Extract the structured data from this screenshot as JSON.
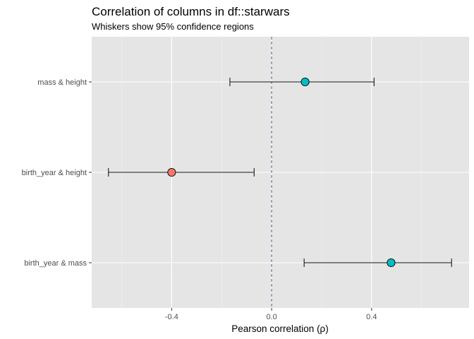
{
  "chart_data": {
    "type": "scatter",
    "title": "Correlation of columns in df::starwars",
    "subtitle": "Whiskers show 95% confidence regions",
    "xlabel": "Pearson correlation (ρ)",
    "ylabel": "",
    "xlim": [
      -0.72,
      0.79
    ],
    "x_ticks": [
      -0.4,
      0.0,
      0.4
    ],
    "x_tick_labels": [
      "-0.4",
      "0.0",
      "0.4"
    ],
    "reference_line": {
      "x": 0,
      "style": "dashed",
      "color": "#6b7b93"
    },
    "grid": true,
    "background_color": "#e5e5e5",
    "categories": [
      "mass & height",
      "birth_year & height",
      "birth_year & mass"
    ],
    "points": [
      {
        "label": "mass & height",
        "estimate": 0.134,
        "ci_low": -0.167,
        "ci_high": 0.41,
        "color": "#00bfc4"
      },
      {
        "label": "birth_year & height",
        "estimate": -0.4,
        "ci_low": -0.653,
        "ci_high": -0.07,
        "color": "#f8766d"
      },
      {
        "label": "birth_year & mass",
        "estimate": 0.478,
        "ci_low": 0.13,
        "ci_high": 0.72,
        "color": "#00bfc4"
      }
    ]
  }
}
